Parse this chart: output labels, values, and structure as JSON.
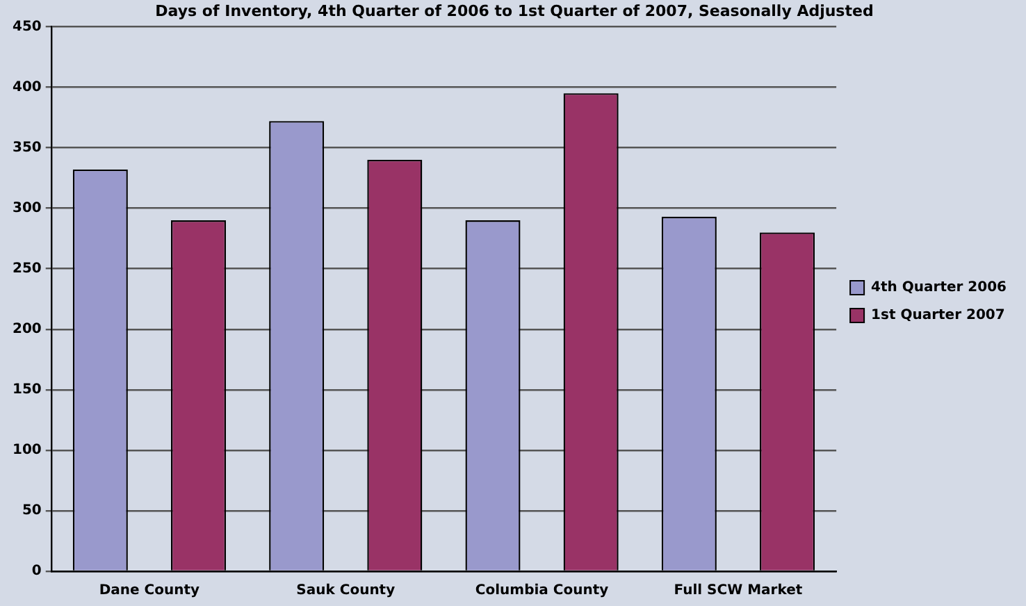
{
  "chart_data": {
    "type": "bar",
    "title": "Days of Inventory, 4th Quarter of 2006 to 1st Quarter of 2007, Seasonally Adjusted",
    "categories": [
      "Dane County",
      "Sauk County",
      "Columbia County",
      "Full SCW Market"
    ],
    "series": [
      {
        "name": "4th Quarter 2006",
        "color": "#9999cc",
        "values": [
          332,
          372,
          290,
          293
        ]
      },
      {
        "name": "1st Quarter 2007",
        "color": "#993366",
        "values": [
          290,
          340,
          395,
          280
        ]
      }
    ],
    "ylim": [
      0,
      450
    ],
    "yticks": [
      0,
      50,
      100,
      150,
      200,
      250,
      300,
      350,
      400,
      450
    ],
    "grid": "y",
    "legend": "right"
  }
}
